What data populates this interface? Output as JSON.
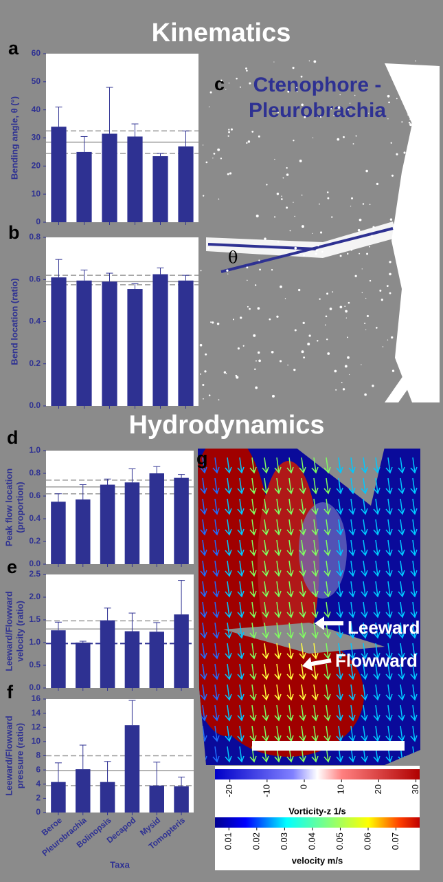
{
  "titles": {
    "kinematics": "Kinematics",
    "hydrodynamics": "Hydrodynamics"
  },
  "chart_data": [
    {
      "type": "bar",
      "panel": "a",
      "ylabel": "Bending angle, θ (°)",
      "color": "#2e3192",
      "values": [
        34,
        25,
        31.5,
        30.5,
        23.5,
        27
      ],
      "errors": [
        7,
        5.5,
        16.5,
        4.5,
        1,
        5.5
      ],
      "ylim": [
        0,
        60
      ],
      "yticks": [
        0,
        10,
        20,
        30,
        40,
        50,
        60
      ],
      "hlines": [
        {
          "value": 28.5,
          "style": "solid"
        },
        {
          "value": 32.5,
          "style": "dashed"
        },
        {
          "value": 24.5,
          "style": "dashed"
        }
      ]
    },
    {
      "type": "bar",
      "panel": "b",
      "ylabel": "Bend location (ratio)",
      "color": "#2e3192",
      "values": [
        0.61,
        0.595,
        0.59,
        0.555,
        0.625,
        0.595
      ],
      "errors": [
        0.085,
        0.05,
        0.04,
        0.025,
        0.03,
        0.025
      ],
      "ylim": [
        0,
        0.8
      ],
      "yticks": [
        {
          "value": 0,
          "label": "0.0"
        },
        0.2,
        0.4,
        0.6,
        0.8
      ],
      "hlines": [
        {
          "value": 0.59,
          "style": "solid"
        },
        {
          "value": 0.62,
          "style": "dashed"
        },
        {
          "value": 0.575,
          "style": "dashed"
        }
      ]
    },
    {
      "type": "bar",
      "panel": "d",
      "ylabel_lines": [
        "Peak flow location",
        "(proportion)"
      ],
      "color": "#2e3192",
      "values": [
        0.55,
        0.57,
        0.7,
        0.72,
        0.8,
        0.76
      ],
      "errors": [
        0.07,
        0.13,
        0.05,
        0.12,
        0.06,
        0.03
      ],
      "ylim": [
        0,
        1
      ],
      "yticks": [
        {
          "value": 0,
          "label": "0.0"
        },
        0.2,
        0.4,
        0.6,
        0.8,
        {
          "value": 1,
          "label": "1.0"
        }
      ],
      "hlines": [
        {
          "value": 0.68,
          "style": "solid"
        },
        {
          "value": 0.74,
          "style": "dashed"
        },
        {
          "value": 0.62,
          "style": "dashed"
        }
      ]
    },
    {
      "type": "bar",
      "panel": "e",
      "ylabel_lines": [
        "Leeward/Flowward",
        "velocity (ratio)"
      ],
      "color": "#2e3192",
      "values": [
        1.27,
        1.0,
        1.49,
        1.25,
        1.24,
        1.62
      ],
      "errors": [
        0.18,
        0.03,
        0.27,
        0.4,
        0.2,
        0.75
      ],
      "ylim": [
        0,
        2.5
      ],
      "yticks": [
        {
          "value": 0,
          "label": "0.0"
        },
        0.5,
        {
          "value": 1,
          "label": "1.0"
        },
        1.5,
        {
          "value": 2,
          "label": "2.0"
        },
        2.5
      ],
      "hlines": [
        {
          "value": 1.3,
          "style": "solid"
        },
        {
          "value": 1.48,
          "style": "dashed"
        },
        {
          "value": 0.98,
          "style": "dashed-dark"
        }
      ]
    },
    {
      "type": "bar",
      "panel": "f",
      "ylabel_lines": [
        "Leeward/Flowward",
        "pressure (ratio)"
      ],
      "color": "#2e3192",
      "categories": [
        "Beroe",
        "Pleurobrachia",
        "Bolinopsis",
        "Decapod",
        "Mysid",
        "Tomopteris"
      ],
      "xlabel": "Taxa",
      "values": [
        4.3,
        6.1,
        4.3,
        12.3,
        3.8,
        3.7
      ],
      "errors": [
        2.7,
        3.4,
        2.9,
        3.5,
        3.3,
        1.3
      ],
      "ylim": [
        0,
        16
      ],
      "yticks": [
        0,
        2,
        4,
        6,
        8,
        10,
        12,
        14,
        16
      ],
      "hlines": [
        {
          "value": 5.9,
          "style": "solid"
        },
        {
          "value": 8,
          "style": "dashed"
        },
        {
          "value": 3.8,
          "style": "dashed"
        }
      ]
    }
  ],
  "panel_c": {
    "panel": "c",
    "title_lines": [
      "Ctenophore -",
      "Pleurobrachia"
    ],
    "angle_label": "θ"
  },
  "panel_g": {
    "panel": "g",
    "annotations": [
      "Leeward",
      "Flowward"
    ],
    "colorbars": [
      {
        "label": "Vorticity-z 1/s",
        "lim": [
          -24,
          31
        ],
        "ticks": [
          -20,
          -10,
          0,
          10,
          20,
          30
        ]
      },
      {
        "label": "velocity m/s",
        "lim": [
          0.005,
          0.0785
        ],
        "ticks": [
          0.01,
          0.02,
          0.03,
          0.04,
          0.05,
          0.06,
          0.07
        ]
      }
    ]
  }
}
